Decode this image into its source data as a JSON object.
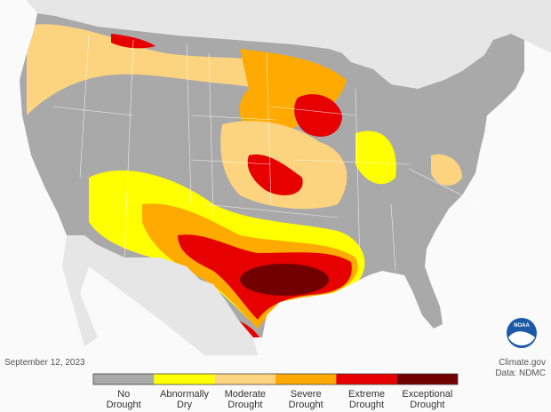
{
  "date": "September 12, 2023",
  "credit": "Climate.gov",
  "source": "Data: NDMC",
  "logo": "NOAA",
  "legend": {
    "categories": [
      {
        "lines": [
          "No",
          "Drought"
        ],
        "color": "#a9a9a9"
      },
      {
        "lines": [
          "Abnormally",
          "Dry"
        ],
        "color": "#ffff00"
      },
      {
        "lines": [
          "Moderate",
          "Drought"
        ],
        "color": "#fcd37f"
      },
      {
        "lines": [
          "Severe",
          "Drought"
        ],
        "color": "#ffaa00"
      },
      {
        "lines": [
          "Extreme",
          "Drought"
        ],
        "color": "#e60000"
      },
      {
        "lines": [
          "Exceptional",
          "Drought"
        ],
        "color": "#730000"
      }
    ]
  }
}
